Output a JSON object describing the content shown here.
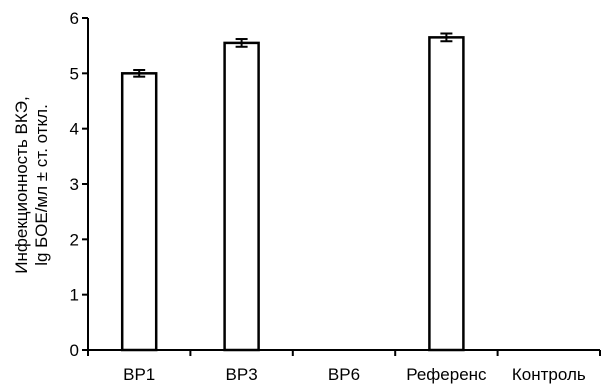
{
  "chart_data": {
    "type": "bar",
    "title": "",
    "xlabel": "",
    "ylabel_lines": [
      "Инфекционность ВКЭ,",
      "lg БОЕ/мл ± ст. откл."
    ],
    "categories": [
      "ВР1",
      "ВР3",
      "ВР6",
      "Референс",
      "Контроль"
    ],
    "values": [
      5.0,
      5.55,
      null,
      5.65,
      null
    ],
    "errors": [
      0.06,
      0.07,
      null,
      0.07,
      null
    ],
    "ylim": [
      0,
      6
    ],
    "yticks": [
      "0",
      "1",
      "2",
      "3",
      "4",
      "5",
      "6"
    ],
    "grid": false,
    "legend": "none",
    "colors": {
      "bar_fill": "#ffffff",
      "bar_stroke": "#000000",
      "axis": "#000000"
    }
  }
}
